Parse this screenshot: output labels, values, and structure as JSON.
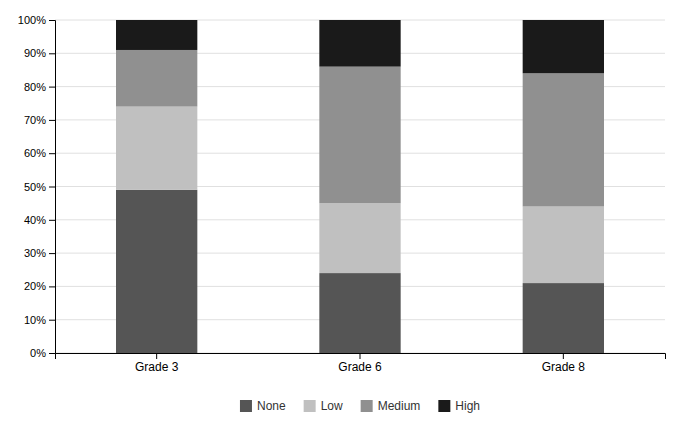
{
  "chart_data": {
    "type": "bar",
    "stacked": true,
    "categories": [
      "Grade 3",
      "Grade 6",
      "Grade 8"
    ],
    "series": [
      {
        "name": "None",
        "color": "#555555",
        "values": [
          49,
          24,
          21
        ]
      },
      {
        "name": "Low",
        "color": "#c0c0c0",
        "values": [
          25,
          21,
          23
        ]
      },
      {
        "name": "Medium",
        "color": "#909090",
        "values": [
          17,
          41,
          40
        ]
      },
      {
        "name": "High",
        "color": "#1a1a1a",
        "values": [
          9,
          14,
          16
        ]
      }
    ],
    "ylim": [
      0,
      100
    ],
    "yticks": [
      {
        "value": 0,
        "label": "0%"
      },
      {
        "value": 10,
        "label": "10%"
      },
      {
        "value": 20,
        "label": "20%"
      },
      {
        "value": 30,
        "label": "30%"
      },
      {
        "value": 40,
        "label": "40%"
      },
      {
        "value": 50,
        "label": "50%"
      },
      {
        "value": 60,
        "label": "60%"
      },
      {
        "value": 70,
        "label": "70%"
      },
      {
        "value": 80,
        "label": "80%"
      },
      {
        "value": 90,
        "label": "90%"
      },
      {
        "value": 100,
        "label": "100%"
      }
    ],
    "grid": true,
    "legend": "bottom"
  }
}
